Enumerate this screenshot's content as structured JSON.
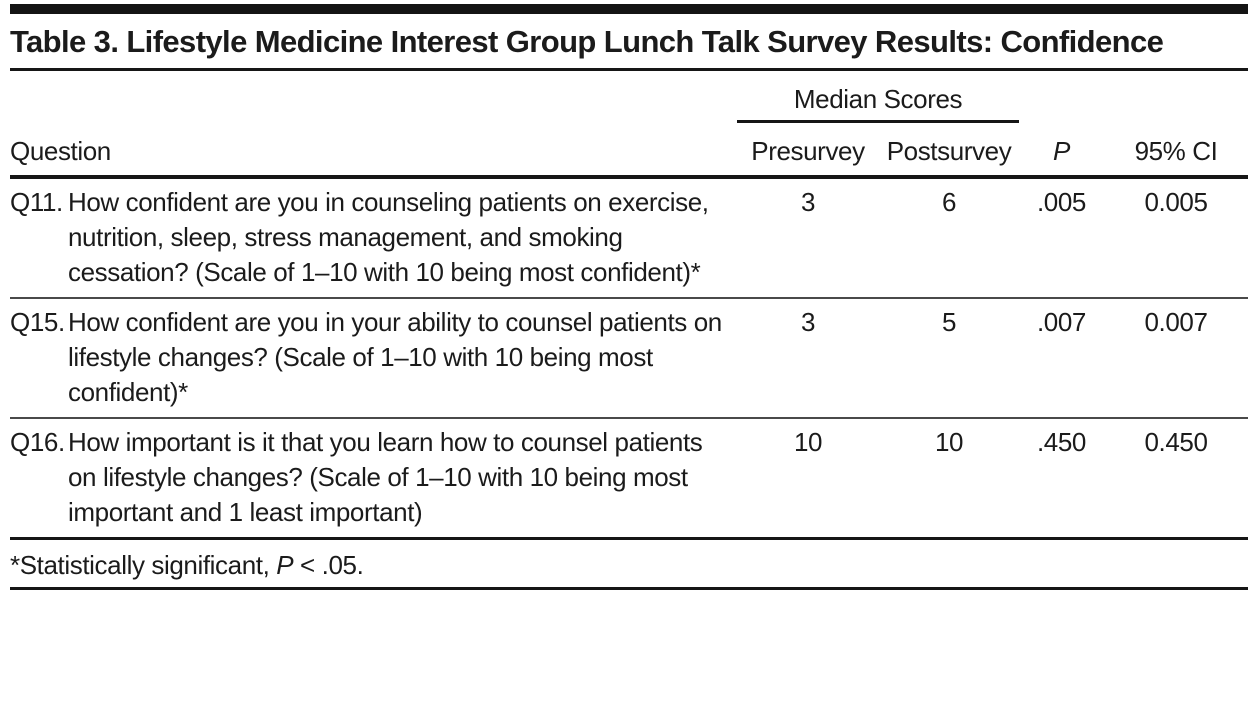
{
  "table": {
    "title": "Table 3. Lifestyle Medicine Interest Group Lunch Talk Survey Results: Confidence",
    "spanner_label": "Median Scores",
    "columns": {
      "question": "Question",
      "presurvey": "Presurvey",
      "postsurvey": "Postsurvey",
      "p": "P",
      "ci": "95% CI"
    },
    "rows": [
      {
        "number": "Q11.",
        "question": "How confident are you in counseling patients on exercise, nutrition, sleep, stress management, and smoking cessation? (Scale of 1–10 with 10 being most confident)*",
        "presurvey": "3",
        "postsurvey": "6",
        "p": ".005",
        "ci": "0.005"
      },
      {
        "number": "Q15.",
        "question": "How confident are you in your ability to counsel patients on lifestyle changes? (Scale of 1–10 with 10 being most confident)*",
        "presurvey": "3",
        "postsurvey": "5",
        "p": ".007",
        "ci": "0.007"
      },
      {
        "number": "Q16.",
        "question": "How important is it that you learn how to counsel patients on lifestyle changes? (Scale of 1–10 with 10 being most important and 1 least important)",
        "presurvey": "10",
        "postsurvey": "10",
        "p": ".450",
        "ci": "0.450"
      }
    ],
    "footnote": {
      "prefix": "*Statistically significant, ",
      "p_label": "P",
      "suffix": " < .05."
    }
  },
  "colors": {
    "text": "#1b1b1b",
    "heavy_rule": "#161616",
    "light_rule": "#4a4a4a"
  }
}
